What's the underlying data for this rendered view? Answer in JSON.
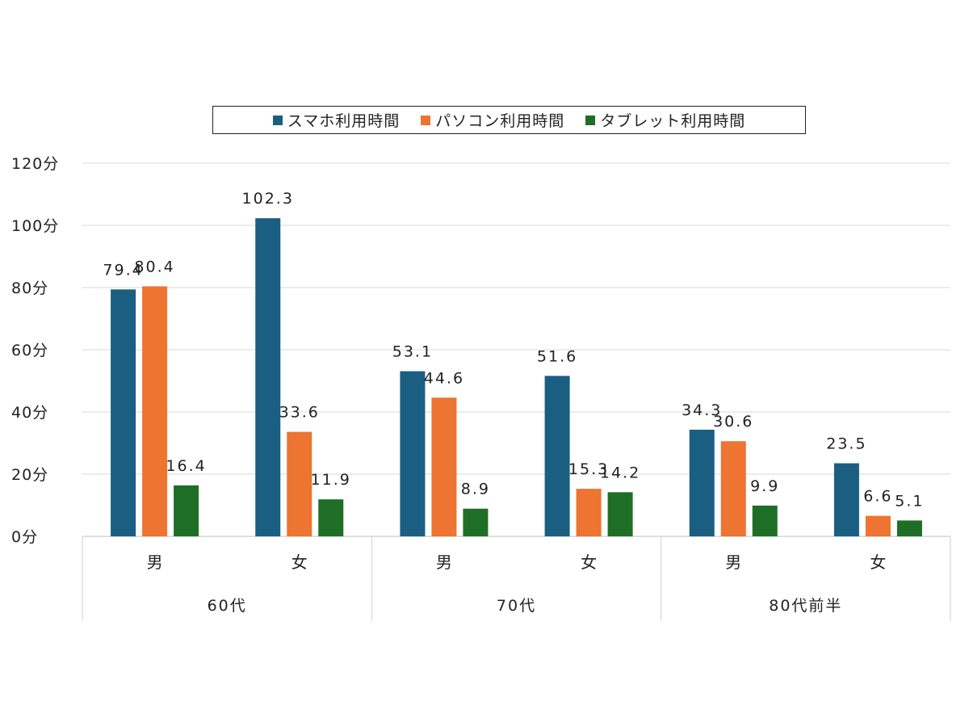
{
  "chart_data": {
    "type": "bar",
    "title": "",
    "ylabel": "",
    "xlabel": "",
    "ylim": [
      0,
      120
    ],
    "yticks": [
      0,
      20,
      40,
      60,
      80,
      100,
      120
    ],
    "y_unit": "分",
    "grid": true,
    "legend_position": "top",
    "categories": [
      "男",
      "女",
      "男",
      "女",
      "男",
      "女"
    ],
    "groups": [
      {
        "label": "60代",
        "span": 2
      },
      {
        "label": "70代",
        "span": 2
      },
      {
        "label": "80代前半",
        "span": 2
      }
    ],
    "series": [
      {
        "name": "スマホ利用時間",
        "color": "#1a5e82",
        "values": [
          79.4,
          102.3,
          53.1,
          51.6,
          34.3,
          23.5
        ]
      },
      {
        "name": "パソコン利用時間",
        "color": "#ed7431",
        "values": [
          80.4,
          33.6,
          44.6,
          15.3,
          30.6,
          6.6
        ]
      },
      {
        "name": "タブレット利用時間",
        "color": "#1f6e25",
        "values": [
          16.4,
          11.9,
          8.9,
          14.2,
          9.9,
          5.1
        ]
      }
    ]
  }
}
